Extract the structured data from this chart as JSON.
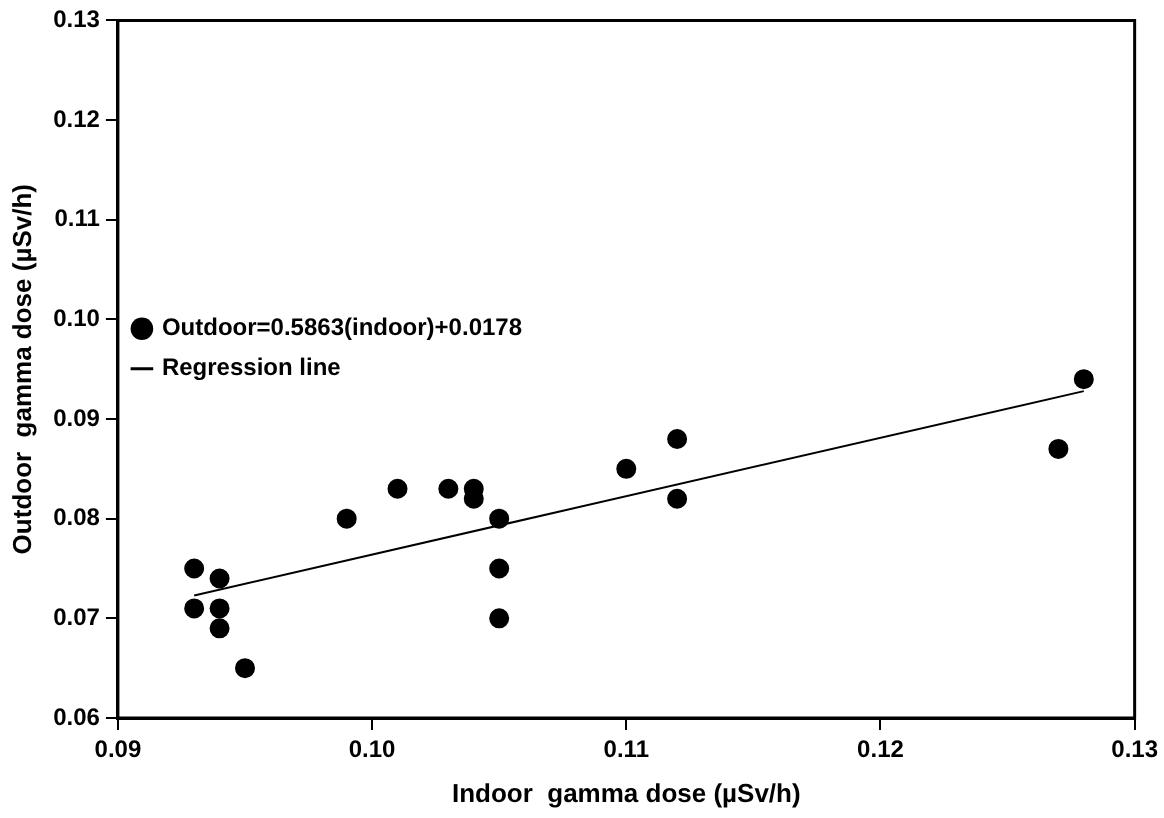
{
  "chart_data": {
    "type": "scatter",
    "xlabel": "Indoor  gamma dose (µSv/h)",
    "ylabel": "Outdoor  gamma dose (µSv/h)",
    "xlim": [
      0.09,
      0.13
    ],
    "xticks": [
      0.09,
      {
        "value": 0.1,
        "label": "0.10"
      },
      0.11,
      0.12,
      0.13
    ],
    "ylim": [
      0.06,
      0.13
    ],
    "yticks": [
      0.06,
      0.07,
      0.08,
      0.09,
      {
        "value": 0.1,
        "label": "0.10"
      },
      0.11,
      0.12,
      0.13
    ],
    "grid": false,
    "legend": "top",
    "series": [
      {
        "name": "Outdoor=0.5863(indoor)+0.0178",
        "type": "scatter",
        "marker": "circle",
        "color": "#000000",
        "x": [
          0.093,
          0.093,
          0.094,
          0.094,
          0.094,
          0.095,
          0.099,
          0.101,
          0.103,
          0.104,
          0.104,
          0.105,
          0.105,
          0.105,
          0.11,
          0.112,
          0.112,
          0.127,
          0.128
        ],
        "values": [
          0.075,
          0.071,
          0.074,
          0.071,
          0.069,
          0.065,
          0.08,
          0.083,
          0.083,
          0.083,
          0.082,
          0.08,
          0.075,
          0.07,
          0.085,
          0.088,
          0.082,
          0.087,
          0.094
        ]
      },
      {
        "name": "Regression line",
        "type": "line",
        "marker": "none",
        "line_style": "solid",
        "color": "#000000",
        "x": [
          0.093,
          0.128
        ],
        "values": [
          0.0723,
          0.0928
        ]
      }
    ]
  }
}
